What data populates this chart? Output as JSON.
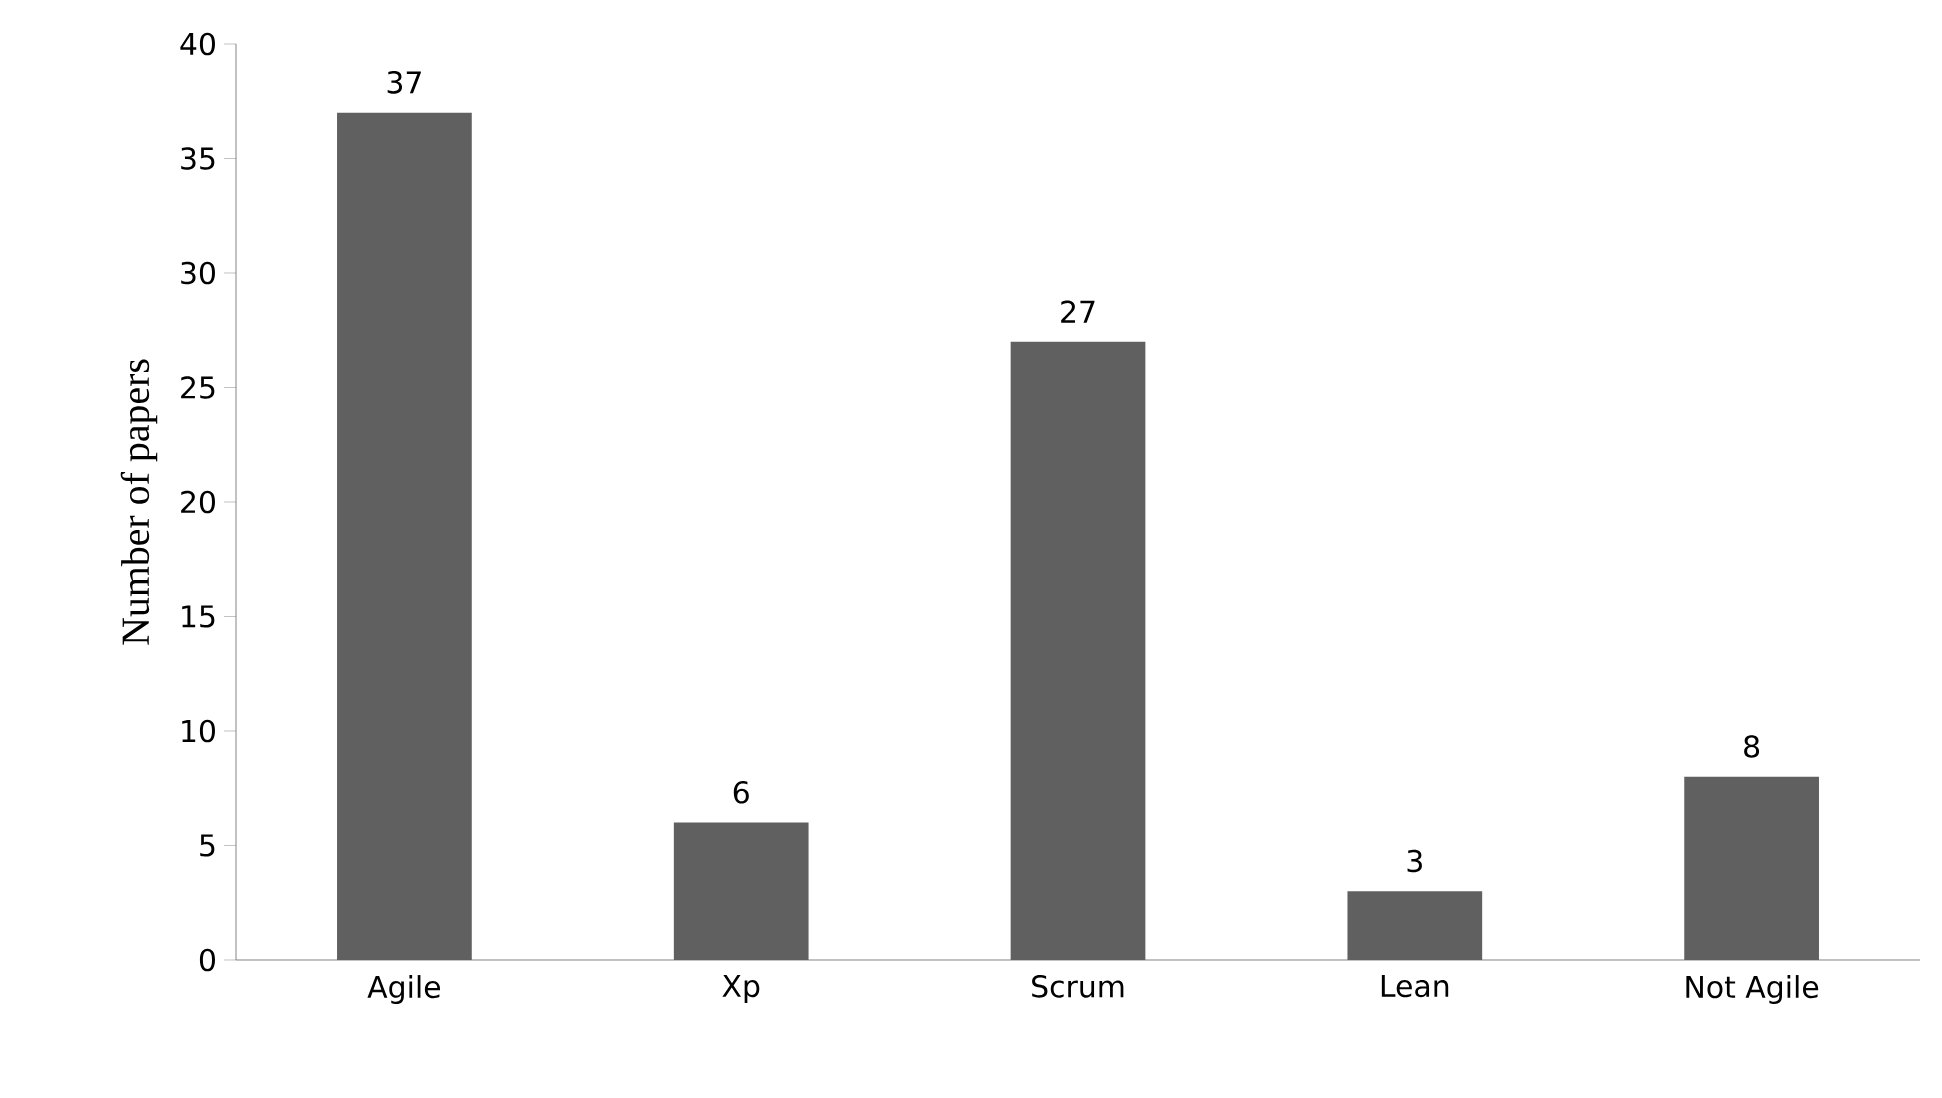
{
  "chart_data": {
    "type": "bar",
    "ylabel": "Number of papers",
    "categories": [
      "Agile",
      "Xp",
      "Scrum",
      "Lean",
      "Not Agile"
    ],
    "values": [
      37,
      6,
      27,
      3,
      8
    ],
    "color": "#606060",
    "ylim": [
      0,
      40
    ],
    "yticks": [
      0,
      5,
      10,
      15,
      20,
      25,
      30,
      35,
      40
    ],
    "data_labels": true
  }
}
